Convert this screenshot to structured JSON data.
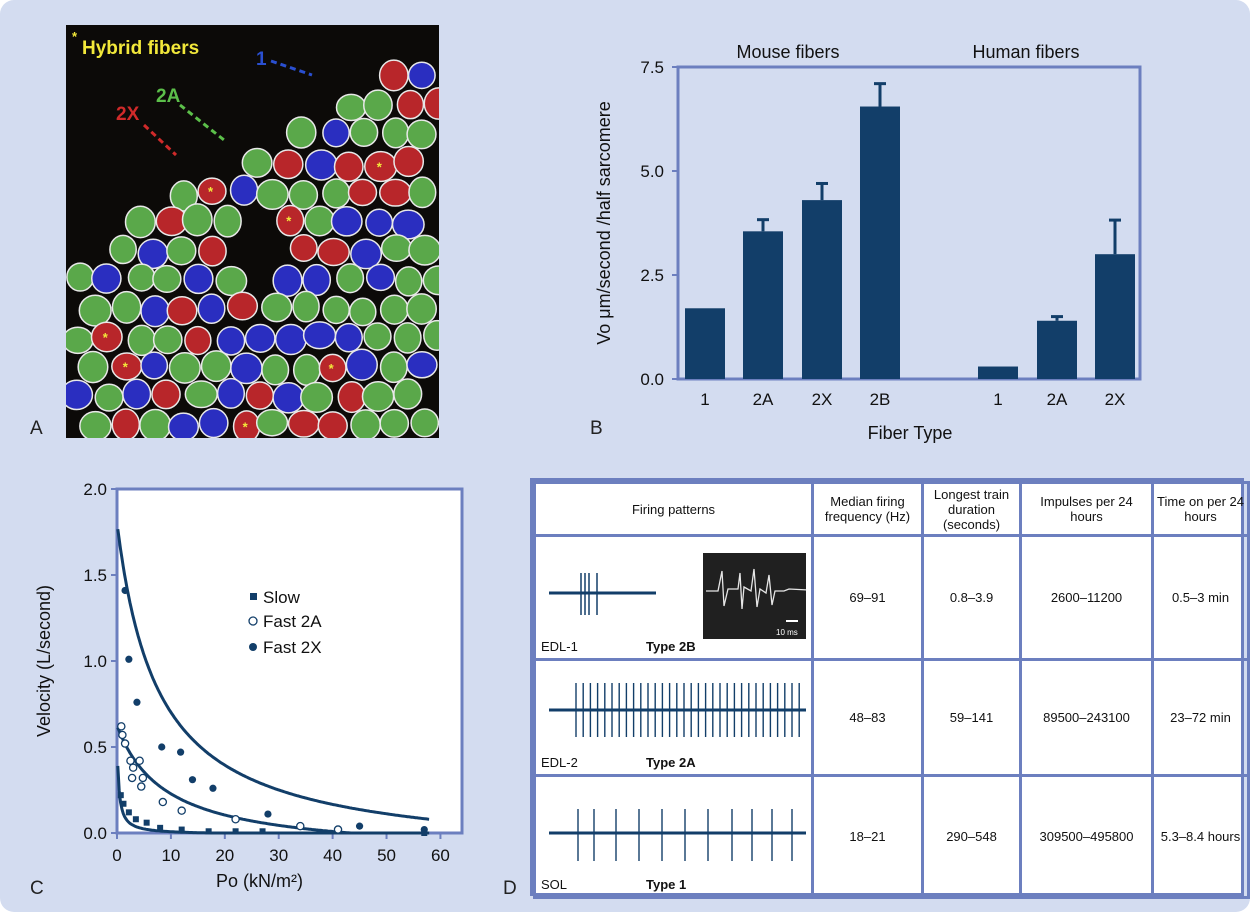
{
  "panels": {
    "a": "A",
    "b": "B",
    "c": "C",
    "d": "D"
  },
  "micrograph": {
    "hybrid_label": "Hybrid fibers",
    "asterisk": "*",
    "type_labels": {
      "type1": "1",
      "type2a": "2A",
      "type2x": "2X"
    }
  },
  "colors": {
    "bar": "#123e69",
    "axis_frame": "#6c7fbf",
    "background": "#d3dcf0",
    "type1_blue": "#2a2ec0",
    "type2a_green": "#5aa84a",
    "type2x_red": "#b8262a",
    "hybrid_yellow": "#f2e83a"
  },
  "chart_data": [
    {
      "type": "bar",
      "title": "",
      "group_titles": [
        "Mouse fibers",
        "Human fibers"
      ],
      "xlabel": "Fiber Type",
      "ylabel": "Vo μm/second /half sarcomere",
      "ylim": [
        0,
        7.5
      ],
      "yticks": [
        "0.0",
        "2.5",
        "5.0",
        "7.5"
      ],
      "series": [
        {
          "name": "Mouse fibers",
          "categories": [
            "1",
            "2A",
            "2X",
            "2B"
          ],
          "values": [
            1.7,
            3.55,
            4.3,
            6.55
          ],
          "errors": [
            0,
            0.28,
            0.4,
            0.55
          ]
        },
        {
          "name": "Human fibers",
          "categories": [
            "1",
            "2A",
            "2X"
          ],
          "values": [
            0.3,
            1.4,
            3.0
          ],
          "errors": [
            0,
            0.1,
            0.82
          ]
        }
      ]
    },
    {
      "type": "scatter",
      "title": "",
      "xlabel": "Po (kN/m²)",
      "ylabel": "Velocity (L/second)",
      "xlim": [
        0,
        64
      ],
      "ylim": [
        0,
        2.0
      ],
      "xticks": [
        "0",
        "10",
        "20",
        "30",
        "40",
        "50",
        "60"
      ],
      "yticks": [
        "0.0",
        "0.5",
        "1.0",
        "1.5",
        "2.0"
      ],
      "legend": [
        "Slow",
        "Fast 2A",
        "Fast 2X"
      ],
      "series": [
        {
          "name": "Slow",
          "marker": "square",
          "points": [
            [
              0.7,
              0.22
            ],
            [
              1.2,
              0.17
            ],
            [
              2.2,
              0.12
            ],
            [
              3.5,
              0.08
            ],
            [
              5.5,
              0.06
            ],
            [
              8,
              0.03
            ],
            [
              12,
              0.02
            ],
            [
              17,
              0.01
            ],
            [
              22,
              0.01
            ],
            [
              27,
              0.01
            ],
            [
              57,
              0.0
            ]
          ],
          "fit_a": 0.18,
          "fit_c": 0.3,
          "fit_y0": -0.01
        },
        {
          "name": "Fast 2A",
          "marker": "open-circle",
          "points": [
            [
              0.8,
              0.62
            ],
            [
              1.0,
              0.57
            ],
            [
              1.5,
              0.52
            ],
            [
              2.5,
              0.42
            ],
            [
              3.0,
              0.38
            ],
            [
              2.8,
              0.32
            ],
            [
              4.2,
              0.42
            ],
            [
              4.8,
              0.32
            ],
            [
              4.5,
              0.27
            ],
            [
              8.5,
              0.18
            ],
            [
              12,
              0.13
            ],
            [
              22,
              0.08
            ],
            [
              34,
              0.04
            ],
            [
              41,
              0.02
            ]
          ],
          "fit_a": 6.8,
          "fit_c": 9,
          "fit_y0": -0.13
        },
        {
          "name": "Fast 2X",
          "marker": "filled-circle",
          "points": [
            [
              1.5,
              1.41
            ],
            [
              2.2,
              1.01
            ],
            [
              3.7,
              0.76
            ],
            [
              8.3,
              0.5
            ],
            [
              11.8,
              0.47
            ],
            [
              14,
              0.31
            ],
            [
              17.8,
              0.26
            ],
            [
              28,
              0.11
            ],
            [
              45,
              0.04
            ],
            [
              57,
              0.02
            ]
          ],
          "fit_a": 15.1,
          "fit_c": 7.73,
          "fit_y0": -0.15
        }
      ]
    }
  ],
  "firing_table": {
    "headers": [
      "Firing patterns",
      "Median firing frequency (Hz)",
      "Longest train duration (seconds)",
      "Impulses per 24 hours",
      "Time on per 24 hours"
    ],
    "inset": {
      "scale_label": "10 ms"
    },
    "rows": [
      {
        "recording": "EDL-1",
        "type": "Type 2B",
        "freq": "69–91",
        "duration": "0.8–3.9",
        "impulses": "2600–11200",
        "time_on": "0.5–3 min"
      },
      {
        "recording": "EDL-2",
        "type": "Type 2A",
        "freq": "48–83",
        "duration": "59–141",
        "impulses": "89500–243100",
        "time_on": "23–72 min"
      },
      {
        "recording": "SOL",
        "type": "Type 1",
        "freq": "18–21",
        "duration": "290–548",
        "impulses": "309500–495800",
        "time_on": "5.3–8.4 hours"
      }
    ]
  }
}
